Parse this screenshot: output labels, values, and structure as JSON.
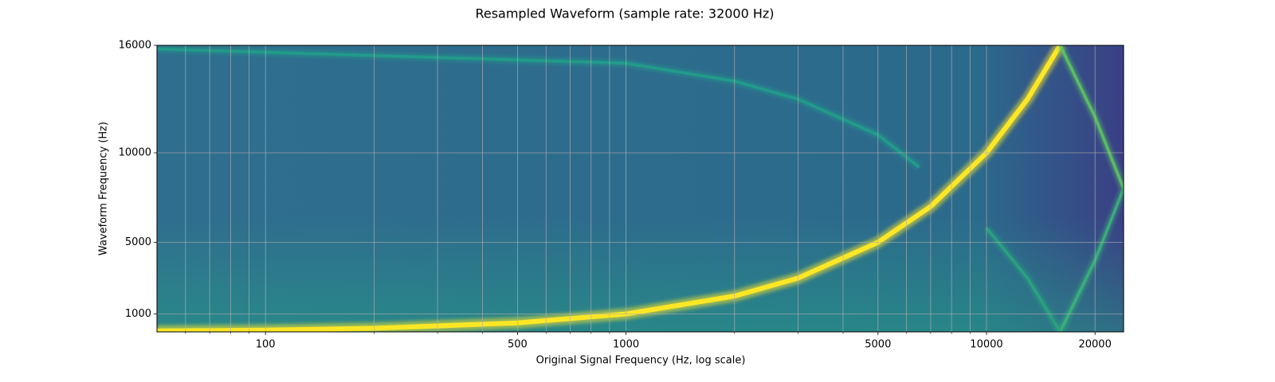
{
  "chart_data": {
    "type": "line",
    "title": "Resampled Waveform (sample rate: 32000 Hz)",
    "x_label": "Original Signal Frequency (Hz, log scale)",
    "y_label": "Waveform Frequency (Hz)",
    "xscale": "log",
    "xlim": [
      50,
      24000
    ],
    "ylim": [
      0,
      16000
    ],
    "xticks": [
      100,
      500,
      1000,
      5000,
      10000,
      20000
    ],
    "xminorticks": [
      60,
      70,
      80,
      90,
      200,
      300,
      400,
      600,
      700,
      800,
      900,
      2000,
      3000,
      4000,
      6000,
      7000,
      8000,
      9000
    ],
    "yticks": [
      1000,
      5000,
      10000,
      16000
    ],
    "grid": true,
    "background": "#2f6e8e",
    "series": [
      {
        "color": "#fde725",
        "x": [
          50,
          100,
          200,
          500,
          1000,
          2000,
          3000,
          5000,
          7000,
          10000,
          13000,
          16000
        ],
        "values": [
          50,
          100,
          200,
          500,
          1000,
          2000,
          3000,
          5000,
          7000,
          10000,
          13000,
          16000
        ]
      },
      {
        "color": "#5ec962",
        "x": [
          16000,
          20000,
          24000
        ],
        "values": [
          16000,
          12000,
          8000
        ]
      },
      {
        "color": "#3bb57a",
        "x": [
          16000,
          20000,
          24000
        ],
        "values": [
          0,
          4000,
          8000
        ]
      },
      {
        "color": "#2aa67f",
        "x": [
          10000,
          13000,
          16000
        ],
        "values": [
          5800,
          3000,
          0
        ]
      },
      {
        "color": "#21a08a",
        "x": [
          50,
          1000,
          2000,
          3000,
          5000,
          6500
        ],
        "values": [
          15800,
          15000,
          14000,
          13000,
          11000,
          9200
        ]
      }
    ]
  }
}
